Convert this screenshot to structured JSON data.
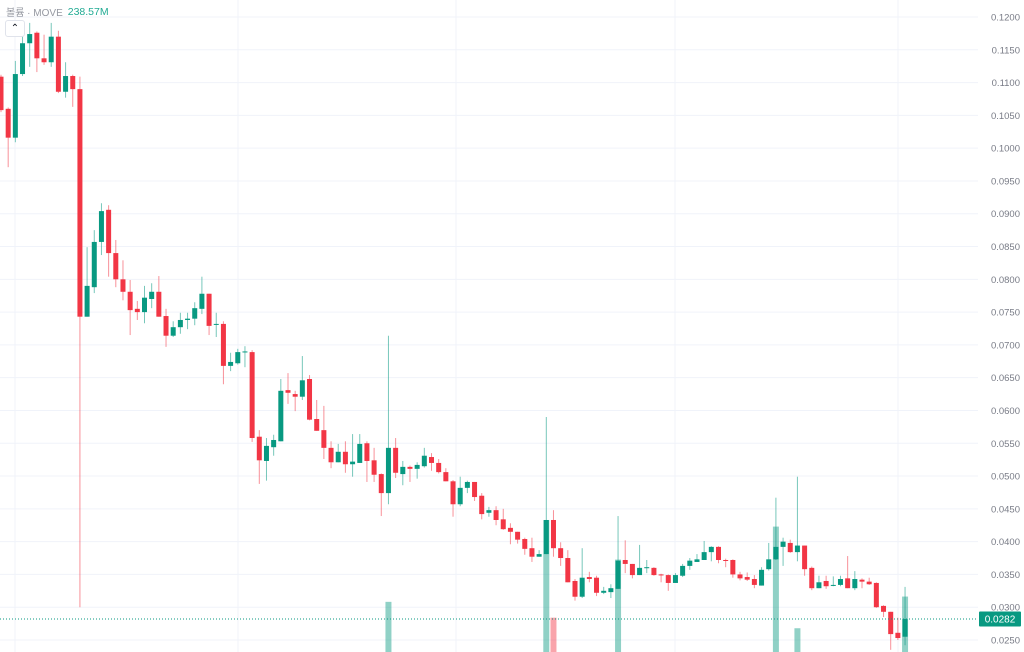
{
  "legend": {
    "label": "볼륨 · MOVE",
    "value": "238.57M"
  },
  "collapse_icon": "chevron-up-icon",
  "colors": {
    "up": "#089981",
    "down": "#F23645",
    "grid": "#f0f3fa",
    "current_price_bg": "#089981"
  },
  "chart_data": {
    "type": "candlestick",
    "y_axis": {
      "side": "right",
      "range": [
        0.025,
        0.12
      ],
      "tick_labels": [
        "0.1200",
        "0.1150",
        "0.1100",
        "0.1050",
        "0.1000",
        "0.0950",
        "0.0900",
        "0.0850",
        "0.0800",
        "0.0750",
        "0.0700",
        "0.0650",
        "0.0600",
        "0.0550",
        "0.0500",
        "0.0450",
        "0.0400",
        "0.0350",
        "0.0300",
        "0.0250"
      ]
    },
    "current_price": "0.0282",
    "grid": true,
    "ohlc": [
      [
        0.1109,
        0.1112,
        0.1055,
        0.1058
      ],
      [
        0.106,
        0.1062,
        0.0971,
        0.1016
      ],
      [
        0.1016,
        0.1133,
        0.1009,
        0.1113
      ],
      [
        0.1113,
        0.1177,
        0.111,
        0.116
      ],
      [
        0.116,
        0.1191,
        0.1124,
        0.1174
      ],
      [
        0.1176,
        0.1178,
        0.1116,
        0.1137
      ],
      [
        0.1137,
        0.1173,
        0.1127,
        0.1131
      ],
      [
        0.1131,
        0.1191,
        0.1124,
        0.117
      ],
      [
        0.117,
        0.1179,
        0.1084,
        0.1086
      ],
      [
        0.1086,
        0.1131,
        0.1077,
        0.111
      ],
      [
        0.111,
        0.1112,
        0.1063,
        0.109
      ],
      [
        0.109,
        0.1109,
        0.03,
        0.0743
      ],
      [
        0.0743,
        0.0849,
        0.0743,
        0.079
      ],
      [
        0.0788,
        0.0875,
        0.0779,
        0.0857
      ],
      [
        0.0857,
        0.0916,
        0.0837,
        0.0904
      ],
      [
        0.0906,
        0.0913,
        0.0804,
        0.084
      ],
      [
        0.084,
        0.086,
        0.0788,
        0.08
      ],
      [
        0.08,
        0.0829,
        0.0768,
        0.0781
      ],
      [
        0.0781,
        0.0799,
        0.0715,
        0.0753
      ],
      [
        0.0755,
        0.0767,
        0.0738,
        0.075
      ],
      [
        0.075,
        0.079,
        0.0733,
        0.0772
      ],
      [
        0.077,
        0.0794,
        0.0756,
        0.0781
      ],
      [
        0.0781,
        0.0805,
        0.0743,
        0.0743
      ],
      [
        0.0744,
        0.0755,
        0.0697,
        0.0714
      ],
      [
        0.0714,
        0.0736,
        0.0712,
        0.0727
      ],
      [
        0.0727,
        0.0749,
        0.0717,
        0.0738
      ],
      [
        0.0738,
        0.0749,
        0.0724,
        0.074
      ],
      [
        0.074,
        0.0765,
        0.073,
        0.0756
      ],
      [
        0.0755,
        0.0804,
        0.0747,
        0.0778
      ],
      [
        0.0778,
        0.0778,
        0.0715,
        0.0729
      ],
      [
        0.0731,
        0.0749,
        0.0712,
        0.0732
      ],
      [
        0.0732,
        0.0736,
        0.064,
        0.0668
      ],
      [
        0.0668,
        0.0688,
        0.066,
        0.0674
      ],
      [
        0.0672,
        0.0694,
        0.067,
        0.0689
      ],
      [
        0.0689,
        0.0698,
        0.0666,
        0.069
      ],
      [
        0.0689,
        0.0692,
        0.0552,
        0.0558
      ],
      [
        0.056,
        0.057,
        0.0488,
        0.0524
      ],
      [
        0.0523,
        0.0558,
        0.0493,
        0.0546
      ],
      [
        0.0544,
        0.0563,
        0.0531,
        0.0555
      ],
      [
        0.0553,
        0.0648,
        0.0553,
        0.063
      ],
      [
        0.0631,
        0.0657,
        0.061,
        0.0627
      ],
      [
        0.0625,
        0.063,
        0.0599,
        0.0621
      ],
      [
        0.0621,
        0.0683,
        0.0616,
        0.0646
      ],
      [
        0.0648,
        0.0654,
        0.0585,
        0.0586
      ],
      [
        0.0587,
        0.0616,
        0.0569,
        0.0569
      ],
      [
        0.057,
        0.0607,
        0.0526,
        0.0543
      ],
      [
        0.0543,
        0.0553,
        0.0512,
        0.0521
      ],
      [
        0.0521,
        0.0549,
        0.0521,
        0.0537
      ],
      [
        0.0537,
        0.0553,
        0.0505,
        0.0518
      ],
      [
        0.0518,
        0.0564,
        0.0499,
        0.0522
      ],
      [
        0.052,
        0.0564,
        0.052,
        0.0549
      ],
      [
        0.055,
        0.0553,
        0.0491,
        0.0523
      ],
      [
        0.0524,
        0.0543,
        0.0491,
        0.0502
      ],
      [
        0.0503,
        0.0504,
        0.0439,
        0.0474
      ],
      [
        0.0474,
        0.0714,
        0.0457,
        0.0543
      ],
      [
        0.0543,
        0.0558,
        0.0497,
        0.0505
      ],
      [
        0.0503,
        0.0523,
        0.0486,
        0.0514
      ],
      [
        0.0514,
        0.0516,
        0.0491,
        0.0511
      ],
      [
        0.0511,
        0.0521,
        0.0496,
        0.0517
      ],
      [
        0.0515,
        0.0543,
        0.0513,
        0.0531
      ],
      [
        0.0529,
        0.0535,
        0.0508,
        0.052
      ],
      [
        0.052,
        0.0526,
        0.0504,
        0.0506
      ],
      [
        0.0506,
        0.0512,
        0.0492,
        0.0492
      ],
      [
        0.0492,
        0.0494,
        0.0438,
        0.0457
      ],
      [
        0.0457,
        0.0499,
        0.0454,
        0.0482
      ],
      [
        0.0482,
        0.0493,
        0.0474,
        0.0491
      ],
      [
        0.0491,
        0.0491,
        0.0462,
        0.0468
      ],
      [
        0.047,
        0.0474,
        0.0434,
        0.0442
      ],
      [
        0.0444,
        0.0453,
        0.0438,
        0.0448
      ],
      [
        0.0448,
        0.0454,
        0.0425,
        0.0433
      ],
      [
        0.0434,
        0.045,
        0.0418,
        0.0419
      ],
      [
        0.0421,
        0.0428,
        0.0396,
        0.0415
      ],
      [
        0.0415,
        0.0415,
        0.0397,
        0.0403
      ],
      [
        0.0404,
        0.0406,
        0.038,
        0.0389
      ],
      [
        0.039,
        0.0406,
        0.0369,
        0.0377
      ],
      [
        0.0377,
        0.0387,
        0.0377,
        0.0381
      ],
      [
        0.0381,
        0.059,
        0.0381,
        0.0433
      ],
      [
        0.0433,
        0.0448,
        0.0377,
        0.039
      ],
      [
        0.039,
        0.0399,
        0.0363,
        0.0375
      ],
      [
        0.0375,
        0.0387,
        0.0338,
        0.0338
      ],
      [
        0.034,
        0.0343,
        0.031,
        0.0316
      ],
      [
        0.0316,
        0.039,
        0.0314,
        0.0345
      ],
      [
        0.0346,
        0.0354,
        0.0338,
        0.0343
      ],
      [
        0.0345,
        0.0348,
        0.0317,
        0.0322
      ],
      [
        0.0322,
        0.0331,
        0.032,
        0.0325
      ],
      [
        0.0323,
        0.0335,
        0.0314,
        0.0329
      ],
      [
        0.0328,
        0.0439,
        0.0328,
        0.0371
      ],
      [
        0.0372,
        0.0402,
        0.0352,
        0.0366
      ],
      [
        0.0366,
        0.0366,
        0.0344,
        0.0349
      ],
      [
        0.0349,
        0.0395,
        0.0349,
        0.036
      ],
      [
        0.036,
        0.0372,
        0.0352,
        0.0361
      ],
      [
        0.036,
        0.0361,
        0.0348,
        0.0349
      ],
      [
        0.035,
        0.0351,
        0.0338,
        0.0349
      ],
      [
        0.0349,
        0.035,
        0.0325,
        0.0337
      ],
      [
        0.0337,
        0.0352,
        0.0337,
        0.0349
      ],
      [
        0.0348,
        0.0366,
        0.0346,
        0.0363
      ],
      [
        0.0363,
        0.0375,
        0.0357,
        0.0371
      ],
      [
        0.0369,
        0.0381,
        0.0369,
        0.0373
      ],
      [
        0.0372,
        0.0401,
        0.0372,
        0.0384
      ],
      [
        0.0384,
        0.0393,
        0.037,
        0.0392
      ],
      [
        0.0392,
        0.0393,
        0.0367,
        0.0372
      ],
      [
        0.0372,
        0.0374,
        0.0361,
        0.0371
      ],
      [
        0.0372,
        0.0373,
        0.0345,
        0.035
      ],
      [
        0.035,
        0.0354,
        0.0341,
        0.0344
      ],
      [
        0.0346,
        0.0353,
        0.034,
        0.0342
      ],
      [
        0.0343,
        0.0349,
        0.0329,
        0.0334
      ],
      [
        0.0333,
        0.0361,
        0.0333,
        0.0357
      ],
      [
        0.0358,
        0.0398,
        0.0356,
        0.0373
      ],
      [
        0.0373,
        0.0467,
        0.0372,
        0.0392
      ],
      [
        0.0392,
        0.0406,
        0.0363,
        0.04
      ],
      [
        0.0398,
        0.0403,
        0.0383,
        0.0384
      ],
      [
        0.0384,
        0.0499,
        0.037,
        0.0394
      ],
      [
        0.0394,
        0.0394,
        0.0348,
        0.0358
      ],
      [
        0.036,
        0.0362,
        0.0326,
        0.0329
      ],
      [
        0.0329,
        0.0348,
        0.0329,
        0.0338
      ],
      [
        0.034,
        0.0348,
        0.0328,
        0.0332
      ],
      [
        0.0333,
        0.0347,
        0.0332,
        0.0334
      ],
      [
        0.0334,
        0.0348,
        0.0332,
        0.0343
      ],
      [
        0.0344,
        0.0378,
        0.0329,
        0.0329
      ],
      [
        0.0329,
        0.0355,
        0.0326,
        0.0343
      ],
      [
        0.0342,
        0.0344,
        0.0329,
        0.0339
      ],
      [
        0.0339,
        0.0345,
        0.0334,
        0.0335
      ],
      [
        0.0337,
        0.0338,
        0.0299,
        0.03
      ],
      [
        0.0302,
        0.0303,
        0.0285,
        0.0293
      ],
      [
        0.0293,
        0.0293,
        0.0235,
        0.0259
      ],
      [
        0.0261,
        0.0284,
        0.025,
        0.0253
      ],
      [
        0.0255,
        0.0331,
        0.0242,
        0.0282
      ]
    ],
    "volume_relative": [
      {
        "index": 54,
        "value": 0.38
      },
      {
        "index": 76,
        "value": 1.0
      },
      {
        "index": 77,
        "value": 0.26
      },
      {
        "index": 86,
        "value": 0.7
      },
      {
        "index": 108,
        "value": 0.95
      },
      {
        "index": 111,
        "value": 0.18
      },
      {
        "index": 126,
        "value": 0.42
      }
    ]
  }
}
